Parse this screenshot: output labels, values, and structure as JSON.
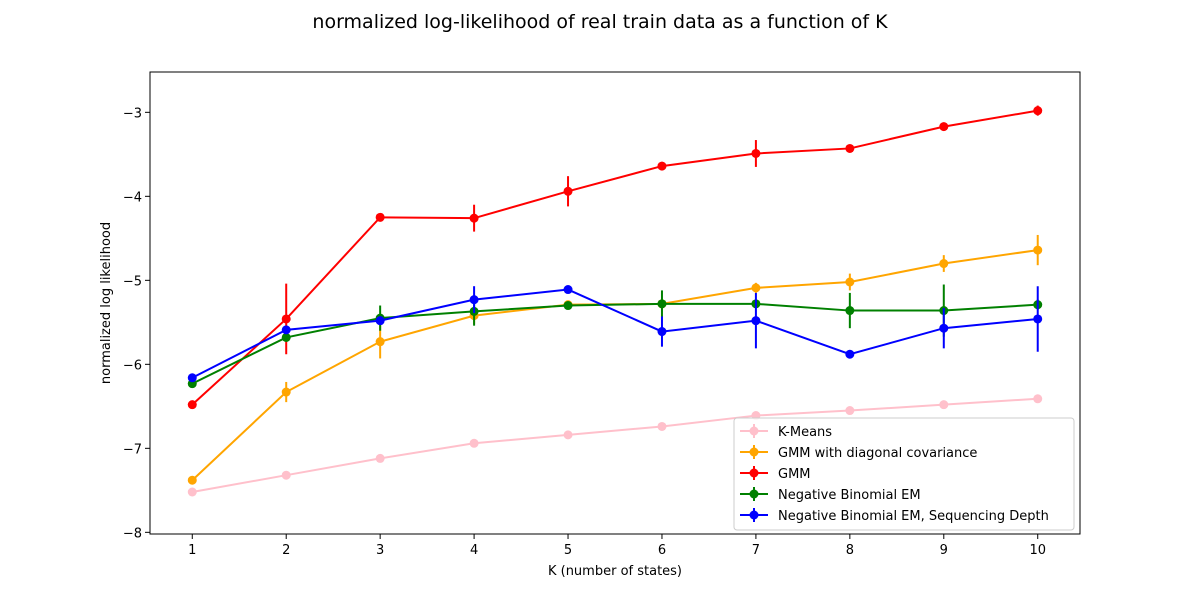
{
  "chart_data": {
    "type": "line",
    "title": "normalized log-likelihood of real train data as a function of K",
    "xlabel": "K (number of states)",
    "ylabel": "normalized log likelihood",
    "x": [
      1,
      2,
      3,
      4,
      5,
      6,
      7,
      8,
      9,
      10
    ],
    "xlim": [
      0.55,
      10.45
    ],
    "ylim": [
      -8.02,
      -2.52
    ],
    "xticks": [
      1,
      2,
      3,
      4,
      5,
      6,
      7,
      8,
      9,
      10
    ],
    "yticks": [
      -8,
      -7,
      -6,
      -5,
      -4,
      -3
    ],
    "ytick_labels": [
      "−8",
      "−7",
      "−6",
      "−5",
      "−4",
      "−3"
    ],
    "grid": false,
    "legend_position": "lower-right",
    "series": [
      {
        "name": "K-Means",
        "color": "#ffc0cb",
        "values": [
          -7.52,
          -7.32,
          -7.12,
          -6.94,
          -6.84,
          -6.74,
          -6.61,
          -6.55,
          -6.48,
          -6.41
        ],
        "errors": [
          0.02,
          0.02,
          0.02,
          0.02,
          0.02,
          0.02,
          0.02,
          0.02,
          0.02,
          0.02
        ]
      },
      {
        "name": "GMM with diagonal covariance",
        "color": "#ffa500",
        "values": [
          -7.38,
          -6.33,
          -5.73,
          -5.42,
          -5.29,
          -5.28,
          -5.09,
          -5.02,
          -4.8,
          -4.64
        ],
        "errors": [
          0.04,
          0.12,
          0.2,
          0.1,
          0.04,
          0.06,
          0.06,
          0.1,
          0.1,
          0.18
        ]
      },
      {
        "name": "GMM",
        "color": "#ff0000",
        "values": [
          -6.48,
          -5.46,
          -4.25,
          -4.26,
          -3.94,
          -3.64,
          -3.49,
          -3.43,
          -3.17,
          -2.98
        ],
        "errors": [
          0.03,
          0.42,
          0.03,
          0.16,
          0.18,
          0.05,
          0.16,
          0.04,
          0.05,
          0.06
        ]
      },
      {
        "name": "Negative Binomial EM",
        "color": "#008000",
        "values": [
          -6.23,
          -5.68,
          -5.45,
          -5.37,
          -5.3,
          -5.28,
          -5.28,
          -5.36,
          -5.36,
          -5.29
        ],
        "errors": [
          0.03,
          0.04,
          0.15,
          0.17,
          0.04,
          0.16,
          0.05,
          0.21,
          0.31,
          0.06
        ]
      },
      {
        "name": "Negative Binomial EM, Sequencing Depth",
        "color": "#0000ff",
        "values": [
          -6.16,
          -5.59,
          -5.48,
          -5.23,
          -5.11,
          -5.61,
          -5.48,
          -5.88,
          -5.57,
          -5.46
        ],
        "errors": [
          0.03,
          0.04,
          0.04,
          0.16,
          0.03,
          0.18,
          0.33,
          0.04,
          0.24,
          0.39
        ]
      }
    ]
  }
}
